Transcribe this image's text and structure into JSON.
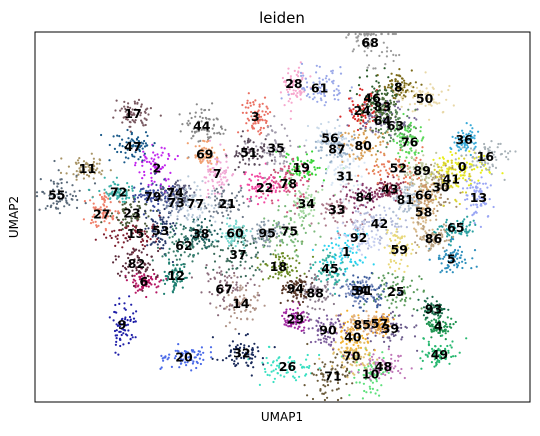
{
  "chart_data": {
    "type": "scatter",
    "title": "leiden",
    "xlabel": "UMAP1",
    "ylabel": "UMAP2",
    "grid": false,
    "legend": "none",
    "xlim": [
      0,
      100
    ],
    "ylim": [
      0,
      100
    ],
    "x_ticks": [],
    "y_ticks": [],
    "clusters": [
      {
        "label": "0",
        "x": 86.3,
        "y": 63.6,
        "color": "#e8ef1a"
      },
      {
        "label": "1",
        "x": 62.9,
        "y": 40.7,
        "color": "#2ad2ee"
      },
      {
        "label": "2",
        "x": 24.6,
        "y": 63.2,
        "color": "#c023ec"
      },
      {
        "label": "3",
        "x": 44.5,
        "y": 77.2,
        "color": "#ea6f62"
      },
      {
        "label": "4",
        "x": 81.5,
        "y": 20.6,
        "color": "#1e9350"
      },
      {
        "label": "5",
        "x": 84.1,
        "y": 38.6,
        "color": "#2e8fbc"
      },
      {
        "label": "6",
        "x": 22.0,
        "y": 32.6,
        "color": "#b51863"
      },
      {
        "label": "7",
        "x": 36.8,
        "y": 61.8,
        "color": "#f0a8d4"
      },
      {
        "label": "8",
        "x": 73.4,
        "y": 85.2,
        "color": "#7c6a1a"
      },
      {
        "label": "9",
        "x": 17.6,
        "y": 21.0,
        "color": "#2020a8"
      },
      {
        "label": "10",
        "x": 67.8,
        "y": 7.6,
        "color": "#5ee07c"
      },
      {
        "label": "11",
        "x": 10.6,
        "y": 63.1,
        "color": "#a89466"
      },
      {
        "label": "12",
        "x": 28.5,
        "y": 34.2,
        "color": "#208072"
      },
      {
        "label": "13",
        "x": 89.6,
        "y": 55.3,
        "color": "#9aa6f4"
      },
      {
        "label": "14",
        "x": 41.6,
        "y": 26.6,
        "color": "#b09488"
      },
      {
        "label": "15",
        "x": 20.3,
        "y": 45.6,
        "color": "#7d1c2d"
      },
      {
        "label": "16",
        "x": 91.0,
        "y": 66.3,
        "color": "#a8b2b8"
      },
      {
        "label": "17",
        "x": 19.8,
        "y": 78.0,
        "color": "#7a5a62"
      },
      {
        "label": "18",
        "x": 49.2,
        "y": 36.6,
        "color": "#6a8a24"
      },
      {
        "label": "19",
        "x": 53.8,
        "y": 63.4,
        "color": "#3ad43a"
      },
      {
        "label": "20",
        "x": 30.1,
        "y": 12.2,
        "color": "#4a6ae8"
      },
      {
        "label": "21",
        "x": 38.8,
        "y": 53.6,
        "color": "#6e7a8a"
      },
      {
        "label": "22",
        "x": 46.4,
        "y": 58.0,
        "color": "#f24aa2"
      },
      {
        "label": "23",
        "x": 19.6,
        "y": 51.1,
        "color": "#4a5a38"
      },
      {
        "label": "24",
        "x": 66.1,
        "y": 78.8,
        "color": "#d82a2a"
      },
      {
        "label": "25",
        "x": 72.9,
        "y": 29.8,
        "color": "#5a9a5a"
      },
      {
        "label": "26",
        "x": 51.0,
        "y": 9.6,
        "color": "#3ae0c2"
      },
      {
        "label": "27",
        "x": 13.5,
        "y": 50.8,
        "color": "#ef7f6a"
      },
      {
        "label": "28",
        "x": 52.3,
        "y": 86.1,
        "color": "#f7a8ce"
      },
      {
        "label": "29",
        "x": 52.6,
        "y": 22.4,
        "color": "#a026a0"
      },
      {
        "label": "30",
        "x": 82.0,
        "y": 58.1,
        "color": "#a28a6a"
      },
      {
        "label": "31",
        "x": 62.6,
        "y": 61.1,
        "color": "#d8e6f4"
      },
      {
        "label": "32",
        "x": 41.8,
        "y": 13.2,
        "color": "#1a2a5a"
      },
      {
        "label": "33",
        "x": 61.0,
        "y": 52.0,
        "color": "#ac7a8a"
      },
      {
        "label": "34",
        "x": 54.8,
        "y": 53.6,
        "color": "#a6d8a2"
      },
      {
        "label": "35",
        "x": 48.7,
        "y": 68.6,
        "color": "#a09aaa"
      },
      {
        "label": "36",
        "x": 86.7,
        "y": 70.9,
        "color": "#3aaad8"
      },
      {
        "label": "37",
        "x": 41.0,
        "y": 39.9,
        "color": "#3a6a5a"
      },
      {
        "label": "38",
        "x": 33.5,
        "y": 45.5,
        "color": "#1a5a5a"
      },
      {
        "label": "39",
        "x": 71.8,
        "y": 19.9,
        "color": "#6a5a8a"
      },
      {
        "label": "40",
        "x": 64.2,
        "y": 17.6,
        "color": "#f2b230"
      },
      {
        "label": "41",
        "x": 84.1,
        "y": 60.3,
        "color": "#d8d030"
      },
      {
        "label": "42",
        "x": 69.6,
        "y": 48.3,
        "color": "#b0b8d8"
      },
      {
        "label": "43",
        "x": 71.7,
        "y": 57.6,
        "color": "#8a2a4a"
      },
      {
        "label": "44",
        "x": 33.7,
        "y": 74.6,
        "color": "#8a8a8a"
      },
      {
        "label": "45",
        "x": 59.6,
        "y": 36.1,
        "color": "#30b0a0"
      },
      {
        "label": "46",
        "x": 68.1,
        "y": 82.1,
        "color": "#2a5a2a"
      },
      {
        "label": "47",
        "x": 19.8,
        "y": 69.1,
        "color": "#1a5a8a"
      },
      {
        "label": "48",
        "x": 70.4,
        "y": 9.6,
        "color": "#c078b8"
      },
      {
        "label": "49",
        "x": 81.7,
        "y": 12.9,
        "color": "#28b870"
      },
      {
        "label": "50",
        "x": 78.7,
        "y": 82.0,
        "color": "#e8d8a8"
      },
      {
        "label": "51",
        "x": 43.2,
        "y": 67.4,
        "color": "#5a4a5a"
      },
      {
        "label": "52",
        "x": 73.4,
        "y": 63.2,
        "color": "#e87a5a"
      },
      {
        "label": "53",
        "x": 25.4,
        "y": 46.4,
        "color": "#2a3a6a"
      },
      {
        "label": "54",
        "x": 65.6,
        "y": 30.2,
        "color": "#7a8aba"
      },
      {
        "label": "55",
        "x": 4.4,
        "y": 56.0,
        "color": "#5a6a7a"
      },
      {
        "label": "56",
        "x": 59.6,
        "y": 71.3,
        "color": "#c8d8e8"
      },
      {
        "label": "57",
        "x": 69.6,
        "y": 21.2,
        "color": "#e8a038"
      },
      {
        "label": "58",
        "x": 78.5,
        "y": 51.3,
        "color": "#d8b888"
      },
      {
        "label": "59",
        "x": 73.6,
        "y": 41.2,
        "color": "#e8d87a"
      },
      {
        "label": "60",
        "x": 40.4,
        "y": 45.7,
        "color": "#7ad8d0"
      },
      {
        "label": "61",
        "x": 57.5,
        "y": 84.8,
        "color": "#9aa8e8"
      },
      {
        "label": "62",
        "x": 30.1,
        "y": 42.3,
        "color": "#3a7a6a"
      },
      {
        "label": "63",
        "x": 72.8,
        "y": 74.7,
        "color": "#5a8a5a"
      },
      {
        "label": "64",
        "x": 70.2,
        "y": 76.1,
        "color": "#7a6a9a"
      },
      {
        "label": "65",
        "x": 85.0,
        "y": 47.2,
        "color": "#2aa0a0"
      },
      {
        "label": "66",
        "x": 78.5,
        "y": 55.9,
        "color": "#c89a6a"
      },
      {
        "label": "67",
        "x": 38.2,
        "y": 30.5,
        "color": "#8a6a7a"
      },
      {
        "label": "68",
        "x": 67.7,
        "y": 97.1,
        "color": "#9a9a9a"
      },
      {
        "label": "69",
        "x": 34.3,
        "y": 67.0,
        "color": "#f0a070"
      },
      {
        "label": "70",
        "x": 64.0,
        "y": 12.5,
        "color": "#e0c070"
      },
      {
        "label": "71",
        "x": 60.2,
        "y": 7.0,
        "color": "#6a5a3a"
      },
      {
        "label": "72",
        "x": 16.9,
        "y": 56.8,
        "color": "#3ab0a8"
      },
      {
        "label": "73",
        "x": 28.5,
        "y": 53.9,
        "color": "#7a8aa8"
      },
      {
        "label": "74",
        "x": 28.3,
        "y": 56.6,
        "color": "#5a5a7a"
      },
      {
        "label": "75",
        "x": 51.4,
        "y": 46.2,
        "color": "#7ab87a"
      },
      {
        "label": "76",
        "x": 75.7,
        "y": 70.3,
        "color": "#5ad85a"
      },
      {
        "label": "77",
        "x": 32.4,
        "y": 53.7,
        "color": "#b8c8d8"
      },
      {
        "label": "78",
        "x": 51.2,
        "y": 59.0,
        "color": "#d0507a"
      },
      {
        "label": "79",
        "x": 23.8,
        "y": 55.6,
        "color": "#3a4a9a"
      },
      {
        "label": "80",
        "x": 66.3,
        "y": 69.3,
        "color": "#d8a058"
      },
      {
        "label": "81",
        "x": 74.8,
        "y": 54.7,
        "color": "#b0c0d0"
      },
      {
        "label": "82",
        "x": 20.5,
        "y": 37.5,
        "color": "#5a2a3a"
      },
      {
        "label": "83",
        "x": 70.2,
        "y": 79.9,
        "color": "#4a6a3a"
      },
      {
        "label": "84",
        "x": 66.5,
        "y": 55.4,
        "color": "#8a3a6a"
      },
      {
        "label": "85",
        "x": 66.1,
        "y": 20.9,
        "color": "#e0b080"
      },
      {
        "label": "86",
        "x": 80.5,
        "y": 44.2,
        "color": "#b8a080"
      },
      {
        "label": "87",
        "x": 61.0,
        "y": 68.4,
        "color": "#98b0c8"
      },
      {
        "label": "88",
        "x": 56.6,
        "y": 29.4,
        "color": "#8a7a8a"
      },
      {
        "label": "89",
        "x": 78.2,
        "y": 62.6,
        "color": "#c0c8a0"
      },
      {
        "label": "90",
        "x": 59.2,
        "y": 19.5,
        "color": "#7a5a9a"
      },
      {
        "label": "91",
        "x": 66.5,
        "y": 30.2,
        "color": "#3a5a9a"
      },
      {
        "label": "92",
        "x": 65.4,
        "y": 44.4,
        "color": "#c8d0f0"
      },
      {
        "label": "93",
        "x": 80.5,
        "y": 25.2,
        "color": "#1a6a4a"
      },
      {
        "label": "94",
        "x": 52.6,
        "y": 30.7,
        "color": "#5a3a2a"
      },
      {
        "label": "95",
        "x": 46.9,
        "y": 45.7,
        "color": "#8a9aaa"
      }
    ]
  }
}
